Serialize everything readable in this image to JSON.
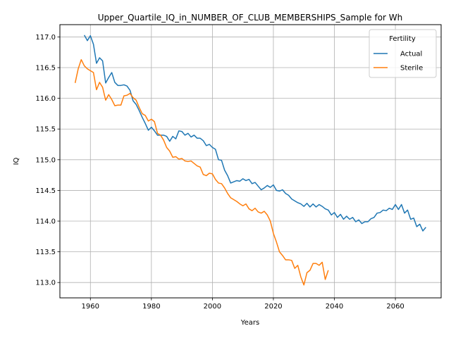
{
  "chart_data": {
    "type": "line",
    "title": "Upper_Quartile_IQ_in_NUMBER_OF_CLUB_MEMBERSHIPS_Sample for Wh",
    "xlabel": "Years",
    "ylabel": "IQ",
    "xlim": [
      1950,
      2075
    ],
    "ylim": [
      112.75,
      117.2
    ],
    "xticks": [
      1960,
      1980,
      2000,
      2020,
      2040,
      2060
    ],
    "yticks": [
      113.0,
      113.5,
      114.0,
      114.5,
      115.0,
      115.5,
      116.0,
      116.5,
      117.0
    ],
    "grid": true,
    "legend": {
      "title": "Fertility",
      "placement": "top-right"
    },
    "series": [
      {
        "name": "Actual",
        "color": "#1f77b4",
        "x": [
          1958,
          1959,
          1960,
          1961,
          1962,
          1963,
          1964,
          1965,
          1966,
          1967,
          1968,
          1969,
          1970,
          1971,
          1972,
          1973,
          1974,
          1975,
          1976,
          1977,
          1978,
          1979,
          1980,
          1981,
          1982,
          1983,
          1984,
          1985,
          1986,
          1987,
          1988,
          1989,
          1990,
          1991,
          1992,
          1993,
          1994,
          1995,
          1996,
          1997,
          1998,
          1999,
          2000,
          2001,
          2002,
          2003,
          2004,
          2005,
          2006,
          2007,
          2008,
          2009,
          2010,
          2011,
          2012,
          2013,
          2014,
          2015,
          2016,
          2017,
          2018,
          2019,
          2020,
          2021,
          2022,
          2023,
          2024,
          2025,
          2026,
          2027,
          2028,
          2029,
          2030,
          2031,
          2032,
          2033,
          2034,
          2035,
          2036,
          2037,
          2038,
          2039,
          2040,
          2041,
          2042,
          2043,
          2044,
          2045,
          2046,
          2047,
          2048,
          2049,
          2050,
          2051,
          2052,
          2053,
          2054,
          2055,
          2056,
          2057,
          2058,
          2059,
          2060,
          2061,
          2062,
          2063,
          2064,
          2065,
          2066,
          2067,
          2068,
          2069,
          2070
        ],
        "y": [
          117.03,
          116.94,
          117.02,
          116.88,
          116.57,
          116.66,
          116.61,
          116.25,
          116.34,
          116.42,
          116.26,
          116.21,
          116.21,
          116.22,
          116.2,
          116.13,
          115.96,
          115.9,
          115.8,
          115.69,
          115.59,
          115.48,
          115.53,
          115.47,
          115.4,
          115.4,
          115.4,
          115.38,
          115.3,
          115.38,
          115.34,
          115.47,
          115.46,
          115.4,
          115.43,
          115.37,
          115.4,
          115.35,
          115.35,
          115.31,
          115.23,
          115.25,
          115.2,
          115.17,
          115.0,
          114.99,
          114.83,
          114.74,
          114.62,
          114.64,
          114.66,
          114.65,
          114.69,
          114.66,
          114.68,
          114.61,
          114.63,
          114.57,
          114.51,
          114.54,
          114.58,
          114.55,
          114.59,
          114.5,
          114.49,
          114.51,
          114.45,
          114.42,
          114.36,
          114.33,
          114.3,
          114.28,
          114.24,
          114.29,
          114.23,
          114.28,
          114.23,
          114.27,
          114.24,
          114.2,
          114.18,
          114.1,
          114.14,
          114.06,
          114.11,
          114.03,
          114.08,
          114.03,
          114.06,
          113.99,
          114.02,
          113.96,
          113.99,
          113.99,
          114.04,
          114.06,
          114.13,
          114.14,
          114.18,
          114.17,
          114.21,
          114.19,
          114.27,
          114.19,
          114.27,
          114.13,
          114.18,
          114.03,
          114.05,
          113.91,
          113.95,
          113.84,
          113.9
        ]
      },
      {
        "name": "Sterile",
        "color": "#ff7f0e",
        "x": [
          1955,
          1956,
          1957,
          1958,
          1959,
          1960,
          1961,
          1962,
          1963,
          1964,
          1965,
          1966,
          1967,
          1968,
          1969,
          1970,
          1971,
          1972,
          1973,
          1974,
          1975,
          1976,
          1977,
          1978,
          1979,
          1980,
          1981,
          1982,
          1983,
          1984,
          1985,
          1986,
          1987,
          1988,
          1989,
          1990,
          1991,
          1992,
          1993,
          1994,
          1995,
          1996,
          1997,
          1998,
          1999,
          2000,
          2001,
          2002,
          2003,
          2004,
          2005,
          2006,
          2007,
          2008,
          2009,
          2010,
          2011,
          2012,
          2013,
          2014,
          2015,
          2016,
          2017,
          2018,
          2019,
          2020,
          2021,
          2022,
          2023,
          2024,
          2025,
          2026,
          2027,
          2028,
          2029,
          2030,
          2031,
          2032,
          2033,
          2034,
          2035,
          2036,
          2037,
          2038
        ],
        "y": [
          116.25,
          116.48,
          116.63,
          116.53,
          116.48,
          116.45,
          116.42,
          116.14,
          116.26,
          116.18,
          115.97,
          116.06,
          115.98,
          115.88,
          115.89,
          115.89,
          116.04,
          116.05,
          116.08,
          116.01,
          115.97,
          115.85,
          115.75,
          115.72,
          115.63,
          115.66,
          115.62,
          115.43,
          115.4,
          115.32,
          115.2,
          115.14,
          115.04,
          115.05,
          115.01,
          115.02,
          114.98,
          114.97,
          114.98,
          114.94,
          114.9,
          114.88,
          114.76,
          114.74,
          114.78,
          114.77,
          114.68,
          114.62,
          114.61,
          114.54,
          114.45,
          114.38,
          114.35,
          114.32,
          114.28,
          114.25,
          114.28,
          114.2,
          114.17,
          114.21,
          114.15,
          114.13,
          114.16,
          114.1,
          114.0,
          113.8,
          113.66,
          113.5,
          113.44,
          113.37,
          113.37,
          113.36,
          113.23,
          113.28,
          113.09,
          112.96,
          113.16,
          113.2,
          113.31,
          113.31,
          113.28,
          113.33,
          113.05,
          113.2
        ]
      }
    ]
  }
}
